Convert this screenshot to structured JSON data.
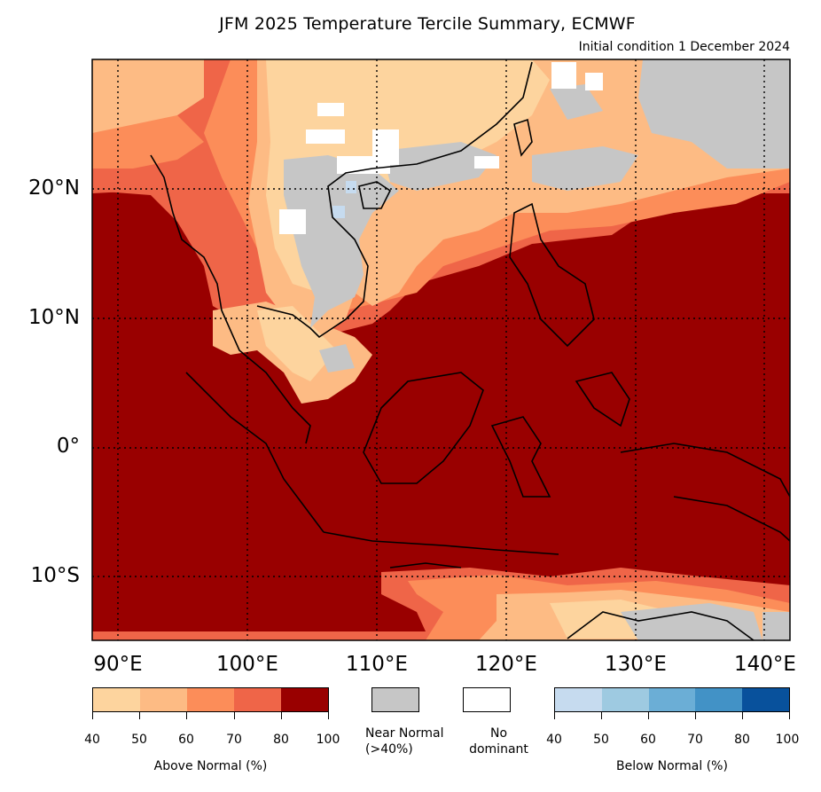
{
  "title": "JFM 2025 Temperature Tercile Summary, ECMWF",
  "subtitle": "Initial condition 1 December 2024",
  "lat_labels": [
    "20°N",
    "10°N",
    "0°",
    "10°S"
  ],
  "lon_labels": [
    "90°E",
    "100°E",
    "110°E",
    "120°E",
    "130°E",
    "140°E"
  ],
  "map": {
    "extent": {
      "lon": [
        88,
        142
      ],
      "lat": [
        -15,
        30
      ]
    },
    "gridlines": {
      "lons": [
        90,
        100,
        110,
        120,
        130,
        140
      ],
      "lats": [
        -10,
        0,
        10,
        20
      ]
    },
    "colors": {
      "above": [
        "#fdd49e",
        "#fdbb84",
        "#fc8d59",
        "#ef6548",
        "#990000"
      ],
      "near_normal": "#c6c6c6",
      "no_dominant": "#ffffff",
      "below": [
        "#c6dbef",
        "#9ecae1",
        "#6baed6",
        "#4292c6",
        "#08519c"
      ],
      "coast": "#000000"
    }
  },
  "legend": {
    "above": {
      "title": "Above Normal (%)",
      "ticks": [
        "40",
        "50",
        "60",
        "70",
        "80",
        "100"
      ]
    },
    "near": {
      "label_line1": "Near Normal",
      "label_line2": "(>40%)"
    },
    "none": {
      "label_line1": "No",
      "label_line2": "dominant"
    },
    "below": {
      "title": "Below Normal (%)",
      "ticks": [
        "40",
        "50",
        "60",
        "70",
        "80",
        "100"
      ]
    }
  }
}
